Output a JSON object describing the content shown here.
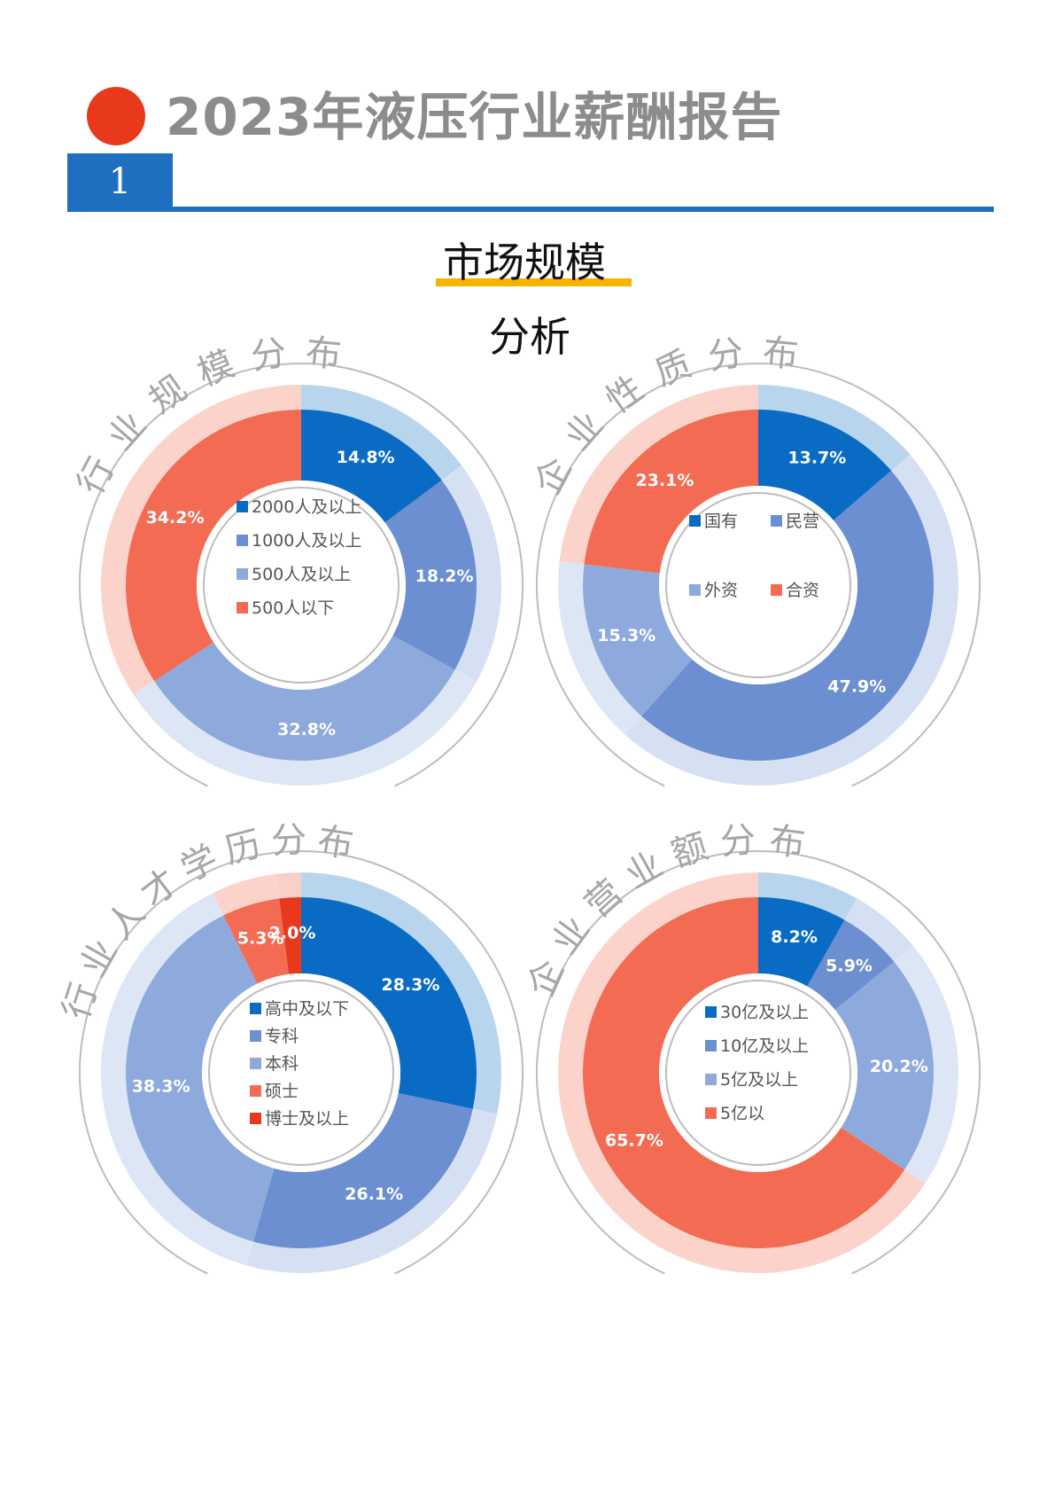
{
  "header": {
    "title": "2023年液压行业薪酬报告",
    "section_number": "1",
    "section_title": "市场规模",
    "section_subtitle": "分析",
    "accent_color": "#e8391d",
    "brand_color": "#1f6fc0",
    "highlight_color": "#f5b400"
  },
  "chart_data": [
    {
      "type": "donut",
      "title": "行业规模分布",
      "categories": [
        "2000人及以上",
        "1000人及以上",
        "500人及以上",
        "500人以下"
      ],
      "values": [
        14.8,
        18.2,
        32.8,
        34.2
      ],
      "value_labels": [
        "14.8%",
        "18.2%",
        "32.8%",
        "34.2%"
      ],
      "colors": [
        "#0a6bc4",
        "#6b8fd0",
        "#8eaadd",
        "#f26b52"
      ],
      "legend": "center"
    },
    {
      "type": "donut",
      "title": "企业性质分布",
      "categories": [
        "国有",
        "民营",
        "外资",
        "合资"
      ],
      "values": [
        13.7,
        47.9,
        15.3,
        23.1
      ],
      "value_labels": [
        "13.7%",
        "47.9%",
        "15.3%",
        "23.1%"
      ],
      "colors": [
        "#0a6bc4",
        "#6b8fd0",
        "#8eaadd",
        "#f26b52"
      ],
      "legend": "center"
    },
    {
      "type": "donut",
      "title": "行业人才学历分布",
      "categories": [
        "高中及以下",
        "专科",
        "本科",
        "硕士",
        "博士及以上"
      ],
      "values": [
        28.3,
        26.1,
        38.3,
        5.3,
        2.0
      ],
      "value_labels": [
        "28.3%",
        "26.1%",
        "38.3%",
        "5.3%",
        "2.0%"
      ],
      "colors": [
        "#0a6bc4",
        "#6b8fd0",
        "#8eaadd",
        "#f26b52",
        "#e8391d"
      ],
      "legend": "center"
    },
    {
      "type": "donut",
      "title": "企业营业额分布",
      "categories": [
        "30亿及以上",
        "10亿及以上",
        "5亿及以上",
        "5亿以"
      ],
      "values": [
        8.2,
        5.9,
        20.2,
        65.7
      ],
      "value_labels": [
        "8.2%",
        "5.9%",
        "20.2%",
        "65.7%"
      ],
      "colors": [
        "#0a6bc4",
        "#6b8fd0",
        "#8eaadd",
        "#f26b52"
      ],
      "legend": "center"
    }
  ]
}
